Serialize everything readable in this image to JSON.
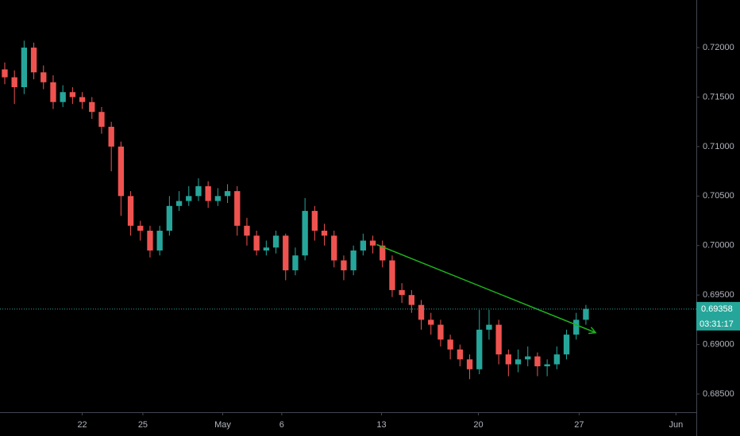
{
  "chart_data": {
    "type": "candlestick",
    "x": [
      0,
      1,
      2,
      3,
      4,
      5,
      6,
      7,
      8,
      9,
      10,
      11,
      12,
      13,
      14,
      15,
      16,
      17,
      18,
      19,
      20,
      21,
      22,
      23,
      24,
      25,
      26,
      27,
      28,
      29,
      30,
      31,
      32,
      33,
      34,
      35,
      36,
      37,
      38,
      39,
      40,
      41,
      42,
      43,
      44,
      45,
      46,
      47,
      48,
      49,
      50,
      51,
      52,
      53,
      54,
      55,
      56,
      57,
      58,
      59,
      60
    ],
    "open": [
      0.7178,
      0.717,
      0.716,
      0.72,
      0.7175,
      0.7165,
      0.7145,
      0.7155,
      0.715,
      0.7145,
      0.7135,
      0.712,
      0.71,
      0.705,
      0.702,
      0.7015,
      0.6995,
      0.7015,
      0.704,
      0.7045,
      0.705,
      0.706,
      0.7045,
      0.705,
      0.7055,
      0.702,
      0.701,
      0.6995,
      0.6998,
      0.701,
      0.6975,
      0.699,
      0.7035,
      0.7015,
      0.701,
      0.6985,
      0.6975,
      0.6995,
      0.7005,
      0.7,
      0.6985,
      0.6955,
      0.695,
      0.694,
      0.6925,
      0.692,
      0.6905,
      0.6895,
      0.6885,
      0.6875,
      0.6915,
      0.692,
      0.689,
      0.688,
      0.6885,
      0.6888,
      0.6878,
      0.688,
      0.689,
      0.691,
      0.6925
    ],
    "high": [
      0.7185,
      0.7177,
      0.7207,
      0.7205,
      0.7182,
      0.7172,
      0.7162,
      0.716,
      0.7155,
      0.715,
      0.714,
      0.7125,
      0.7105,
      0.7055,
      0.7025,
      0.702,
      0.702,
      0.705,
      0.7055,
      0.706,
      0.7068,
      0.7065,
      0.7058,
      0.7062,
      0.706,
      0.7028,
      0.7015,
      0.7005,
      0.7015,
      0.7012,
      0.6998,
      0.7048,
      0.704,
      0.7022,
      0.7015,
      0.699,
      0.7,
      0.7012,
      0.701,
      0.7005,
      0.699,
      0.6962,
      0.6955,
      0.6945,
      0.6932,
      0.6925,
      0.691,
      0.69,
      0.689,
      0.6935,
      0.6935,
      0.6925,
      0.6895,
      0.6895,
      0.6898,
      0.6892,
      0.6885,
      0.6898,
      0.6915,
      0.6932,
      0.694
    ],
    "low": [
      0.7163,
      0.7143,
      0.7153,
      0.7168,
      0.7158,
      0.7138,
      0.714,
      0.7143,
      0.7138,
      0.7128,
      0.7113,
      0.7075,
      0.703,
      0.701,
      0.7005,
      0.6988,
      0.699,
      0.701,
      0.7035,
      0.704,
      0.7045,
      0.7038,
      0.704,
      0.7043,
      0.701,
      0.7,
      0.699,
      0.699,
      0.6992,
      0.6965,
      0.697,
      0.6985,
      0.7005,
      0.7,
      0.6978,
      0.6965,
      0.697,
      0.699,
      0.6992,
      0.6978,
      0.6948,
      0.6942,
      0.6932,
      0.6915,
      0.691,
      0.6898,
      0.6885,
      0.6878,
      0.6865,
      0.687,
      0.6905,
      0.688,
      0.6868,
      0.6872,
      0.6878,
      0.6868,
      0.6868,
      0.6875,
      0.6885,
      0.6905,
      0.692
    ],
    "close": [
      0.717,
      0.716,
      0.72,
      0.7175,
      0.7165,
      0.7145,
      0.7155,
      0.715,
      0.7145,
      0.7135,
      0.712,
      0.71,
      0.705,
      0.702,
      0.7015,
      0.6995,
      0.7015,
      0.704,
      0.7045,
      0.705,
      0.706,
      0.7045,
      0.705,
      0.7055,
      0.702,
      0.701,
      0.6995,
      0.6998,
      0.701,
      0.6975,
      0.699,
      0.7035,
      0.7015,
      0.701,
      0.6985,
      0.6975,
      0.6995,
      0.7005,
      0.7,
      0.6985,
      0.6955,
      0.695,
      0.694,
      0.6925,
      0.692,
      0.6905,
      0.6895,
      0.6885,
      0.6875,
      0.6915,
      0.692,
      0.689,
      0.688,
      0.6885,
      0.6888,
      0.6878,
      0.688,
      0.689,
      0.691,
      0.6925,
      0.6936
    ],
    "up_color": "#26a69a",
    "down_color": "#ef5350",
    "xlim": [
      -0.49,
      71.4
    ],
    "xticks": [
      {
        "value": 8,
        "label": "22"
      },
      {
        "value": 14.26,
        "label": "25"
      },
      {
        "value": 22.5,
        "label": "May"
      },
      {
        "value": 28.6,
        "label": "6"
      },
      {
        "value": 38.9,
        "label": "13"
      },
      {
        "value": 48.9,
        "label": "20"
      },
      {
        "value": 59.3,
        "label": "27"
      },
      {
        "value": 69.3,
        "label": "Jun"
      }
    ],
    "ylim": [
      0.68316,
      0.72481
    ],
    "yticks": [
      {
        "value": 0.685,
        "label": "0.68500"
      },
      {
        "value": 0.69,
        "label": "0.69000"
      },
      {
        "value": 0.695,
        "label": "0.69500"
      },
      {
        "value": 0.7,
        "label": "0.70000"
      },
      {
        "value": 0.705,
        "label": "0.70500"
      },
      {
        "value": 0.71,
        "label": "0.71000"
      },
      {
        "value": 0.715,
        "label": "0.71500"
      },
      {
        "value": 0.72,
        "label": "0.72000"
      }
    ],
    "last_price": 0.69358,
    "countdown": "03:31:17",
    "last_price_color": "#26a69a",
    "trendline": {
      "x": [
        38.4,
        61
      ],
      "y": [
        0.7001,
        0.6912
      ],
      "color": "#1db31d"
    }
  }
}
